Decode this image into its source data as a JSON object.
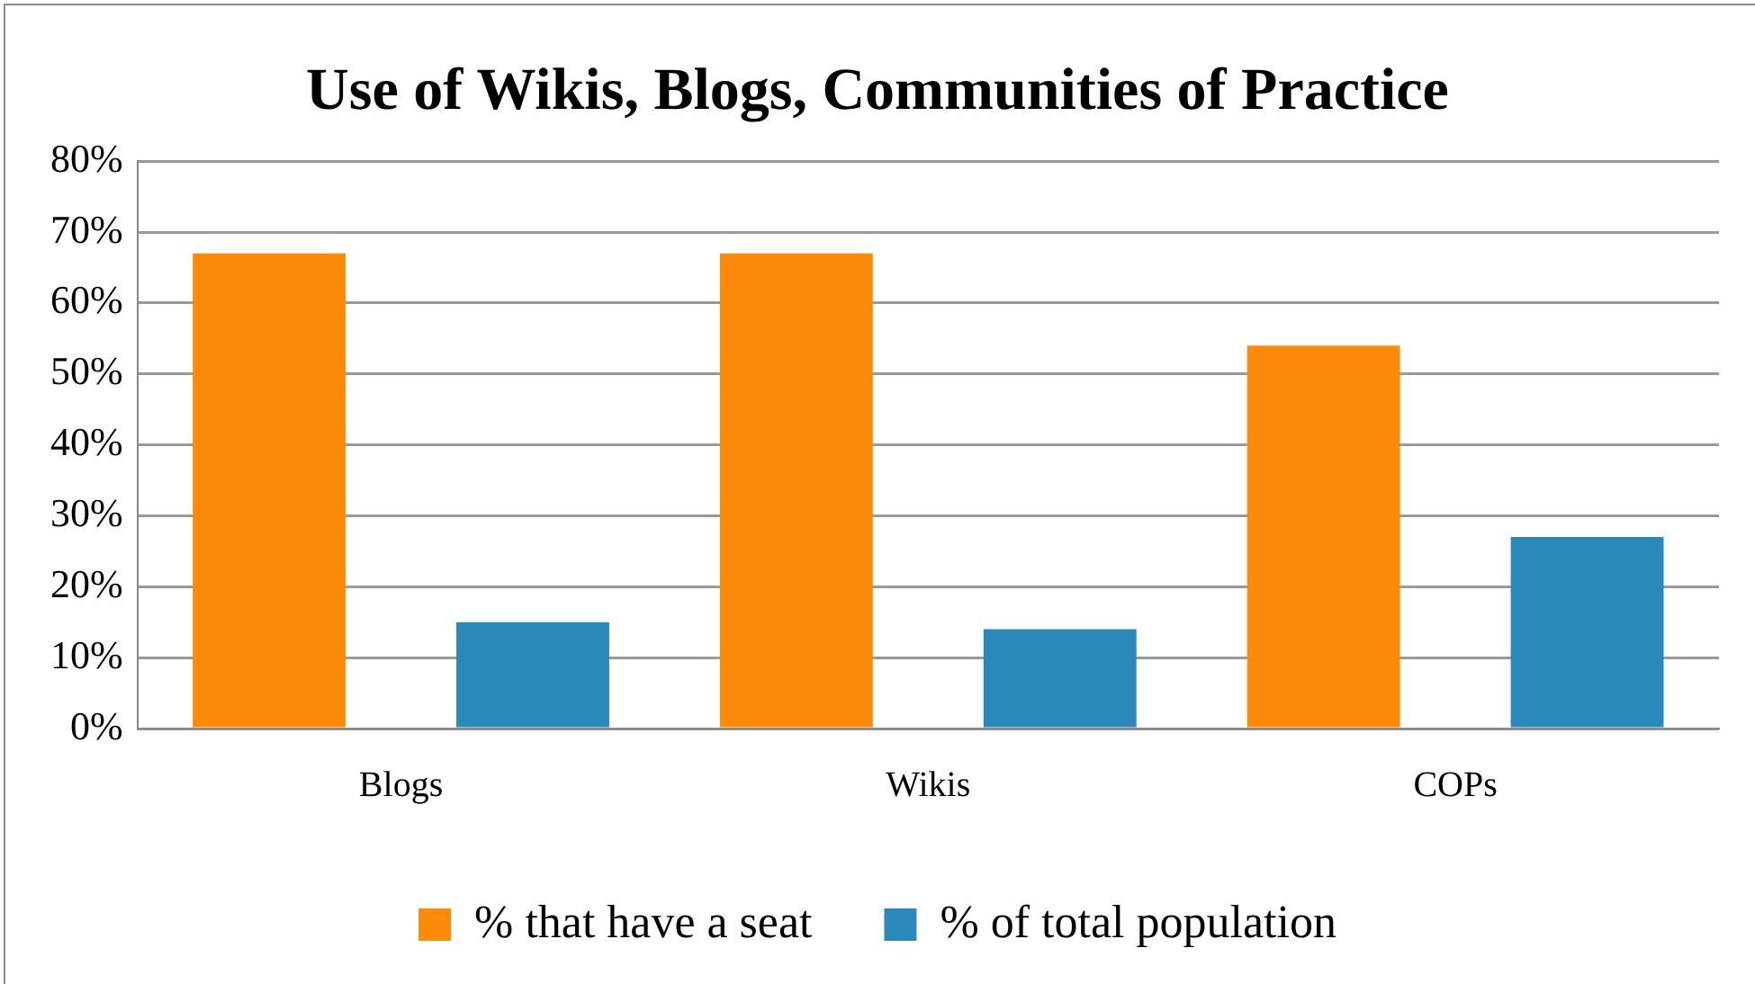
{
  "chart_data": {
    "type": "bar",
    "title": "Use of Wikis, Blogs, Communities of Practice",
    "categories": [
      "Blogs",
      "Wikis",
      "COPs"
    ],
    "series": [
      {
        "name": "% that have a seat",
        "color": "#fe8a0a",
        "values": [
          67,
          67,
          54
        ]
      },
      {
        "name": "% of total population",
        "color": "#2a88bb",
        "values": [
          15,
          14,
          27
        ]
      }
    ],
    "ylim": [
      0,
      80
    ],
    "yticks": [
      {
        "value": 0,
        "label": "0%"
      },
      {
        "value": 10,
        "label": "10%"
      },
      {
        "value": 20,
        "label": "20%"
      },
      {
        "value": 30,
        "label": "30%"
      },
      {
        "value": 40,
        "label": "40%"
      },
      {
        "value": 50,
        "label": "50%"
      },
      {
        "value": 60,
        "label": "60%"
      },
      {
        "value": 70,
        "label": "70%"
      },
      {
        "value": 80,
        "label": "80%"
      }
    ],
    "grid": "y",
    "legend": "bottom"
  }
}
